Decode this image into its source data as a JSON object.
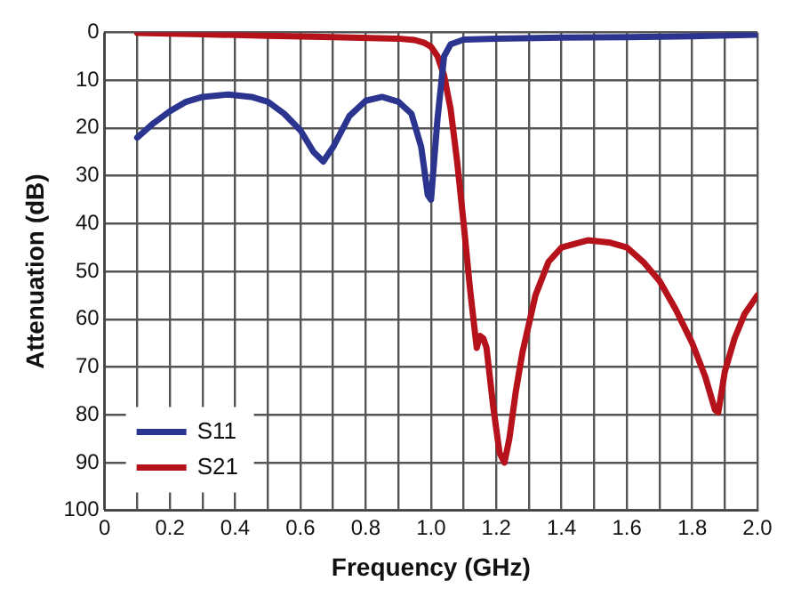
{
  "chart_data": {
    "type": "line",
    "xlabel": "Frequency (GHz)",
    "ylabel": "Attenuation (dB)",
    "xlim": [
      0,
      2.0
    ],
    "ylim": [
      100,
      0
    ],
    "xticks": [
      0,
      {
        "value": 0.1,
        "label": null
      },
      0.2,
      {
        "value": 0.3,
        "label": null
      },
      0.4,
      {
        "value": 0.5,
        "label": null
      },
      0.6,
      {
        "value": 0.7,
        "label": null
      },
      0.8,
      {
        "value": 0.9,
        "label": null
      },
      {
        "value": 1.0,
        "label": "1.0"
      },
      {
        "value": 1.1,
        "label": null
      },
      1.2,
      {
        "value": 1.3,
        "label": null
      },
      1.4,
      {
        "value": 1.5,
        "label": null
      },
      1.6,
      {
        "value": 1.7,
        "label": null
      },
      1.8,
      {
        "value": 1.9,
        "label": null
      },
      {
        "value": 2.0,
        "label": "2.0"
      }
    ],
    "yticks": [
      0,
      10,
      20,
      30,
      40,
      50,
      60,
      70,
      80,
      90,
      100
    ],
    "grid": true,
    "legend": "bottom left",
    "marker": "none",
    "line_style": "solid",
    "series": [
      {
        "name": "S11",
        "color": "#2b3590",
        "x": [
          0.1,
          0.15,
          0.2,
          0.25,
          0.3,
          0.38,
          0.45,
          0.5,
          0.55,
          0.6,
          0.64,
          0.67,
          0.7,
          0.75,
          0.8,
          0.85,
          0.9,
          0.94,
          0.97,
          0.99,
          1.0,
          1.02,
          1.04,
          1.06,
          1.1,
          1.2,
          1.4,
          1.6,
          1.8,
          2.0
        ],
        "values": [
          22,
          19,
          16.5,
          14.5,
          13.5,
          13,
          13.5,
          14.5,
          17,
          20.5,
          25,
          27,
          24,
          17.5,
          14.3,
          13.5,
          14.5,
          17,
          24,
          34,
          35,
          18,
          5,
          2.5,
          1.5,
          1.3,
          1.1,
          1,
          0.8,
          0.5
        ]
      },
      {
        "name": "S21",
        "color": "#b5121b",
        "x": [
          0.1,
          0.3,
          0.5,
          0.7,
          0.9,
          0.95,
          0.98,
          1.0,
          1.02,
          1.04,
          1.06,
          1.08,
          1.1,
          1.12,
          1.14,
          1.15,
          1.16,
          1.17,
          1.19,
          1.21,
          1.225,
          1.24,
          1.26,
          1.28,
          1.32,
          1.36,
          1.4,
          1.48,
          1.55,
          1.6,
          1.65,
          1.7,
          1.75,
          1.8,
          1.84,
          1.87,
          1.88,
          1.9,
          1.93,
          1.96,
          2.0
        ],
        "values": [
          0.1,
          0.4,
          0.7,
          1,
          1.3,
          1.6,
          2.2,
          3,
          5,
          9,
          16,
          27,
          40,
          54,
          66,
          63.5,
          64,
          66,
          78,
          88,
          90,
          85,
          75,
          67,
          55,
          48,
          45,
          43.5,
          44,
          45,
          48,
          52,
          58,
          65,
          72,
          79,
          79.5,
          71,
          64,
          59,
          55
        ]
      }
    ]
  }
}
